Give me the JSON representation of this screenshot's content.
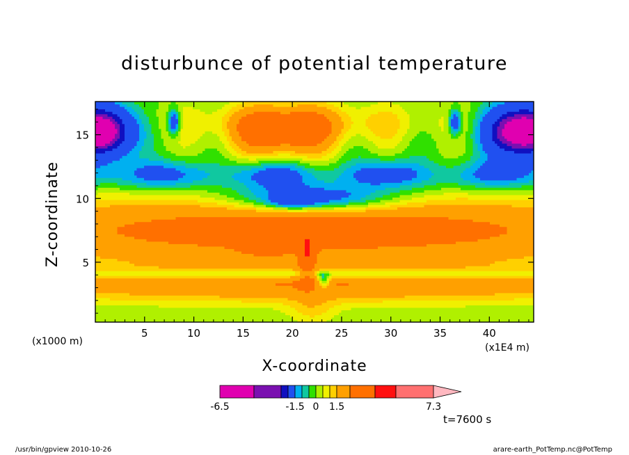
{
  "chart_data": {
    "type": "heatmap",
    "title": "disturbunce of potential temperature",
    "xlabel": "X-coordinate",
    "ylabel": "Z-coordinate",
    "x_unit": "(x1000 m)",
    "x_unit_secondary": "(x1E4 m)",
    "xlim": [
      0,
      44.5
    ],
    "ylim": [
      0.3,
      17.6
    ],
    "x_ticks": [
      5,
      10,
      15,
      20,
      25,
      30,
      35,
      40
    ],
    "y_ticks": [
      5,
      10,
      15
    ],
    "colorbar": {
      "levels": [
        -6.5,
        -5.5,
        -4.5,
        -3.5,
        -1.5,
        -1.0,
        -0.5,
        0,
        0.5,
        1.0,
        1.5,
        2.5,
        4.5,
        5.5,
        7.3
      ],
      "labels": [
        "-6.5",
        "-1.5",
        "0",
        "1.5",
        "7.3"
      ],
      "colors": [
        "#e000b0",
        "#7a10b0",
        "#1010c0",
        "#2050f0",
        "#00b0f0",
        "#10c8a0",
        "#30e000",
        "#b0f000",
        "#f0f000",
        "#ffd000",
        "#ffa000",
        "#ff7000",
        "#ff1010",
        "#ff7070",
        "#ffb8c0"
      ]
    },
    "grid": false,
    "time_annotation": "t=7600 s"
  },
  "footer": {
    "left": "/usr/bin/gpview   2010-10-26",
    "right": "arare-earth_PotTemp.nc@PotTemp"
  }
}
